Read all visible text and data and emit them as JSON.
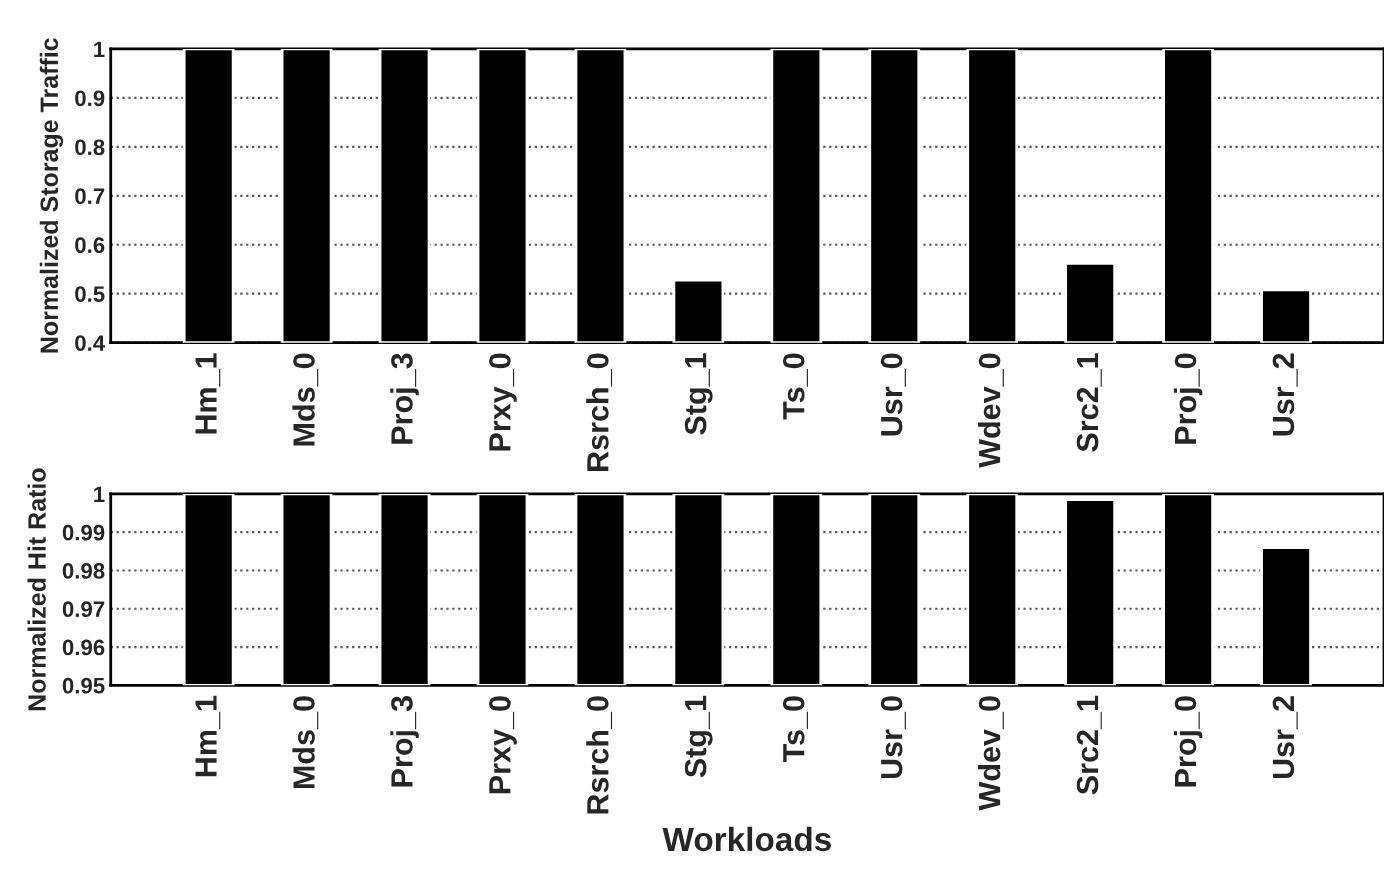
{
  "chart_data": [
    {
      "type": "bar",
      "ylabel": "Normalized Storage Traffic",
      "categories": [
        "Hm_1",
        "Mds_0",
        "Proj_3",
        "Prxy_0",
        "Rsrch_0",
        "Stg_1",
        "Ts_0",
        "Usr_0",
        "Wdev_0",
        "Src2_1",
        "Proj_0",
        "Usr_2"
      ],
      "color": "#000000",
      "values": [
        1,
        1,
        1,
        1,
        1,
        0.528,
        1,
        1,
        1,
        0.562,
        1,
        0.508
      ],
      "ylim": [
        0.4,
        1
      ],
      "yticks": [
        0.4,
        0.5,
        0.6,
        0.7,
        0.8,
        0.9,
        1
      ],
      "grid": "y"
    },
    {
      "type": "bar",
      "ylabel": "Normalized Hit Ratio",
      "xlabel": "Workloads",
      "categories": [
        "Hm_1",
        "Mds_0",
        "Proj_3",
        "Prxy_0",
        "Rsrch_0",
        "Stg_1",
        "Ts_0",
        "Usr_0",
        "Wdev_0",
        "Src2_1",
        "Proj_0",
        "Usr_2"
      ],
      "color": "#000000",
      "values": [
        1,
        1,
        1,
        1,
        1,
        1,
        1,
        1,
        1,
        0.9985,
        1,
        0.986
      ],
      "ylim": [
        0.95,
        1
      ],
      "yticks": [
        0.95,
        0.96,
        0.97,
        0.98,
        0.99,
        1
      ],
      "grid": "y"
    }
  ]
}
